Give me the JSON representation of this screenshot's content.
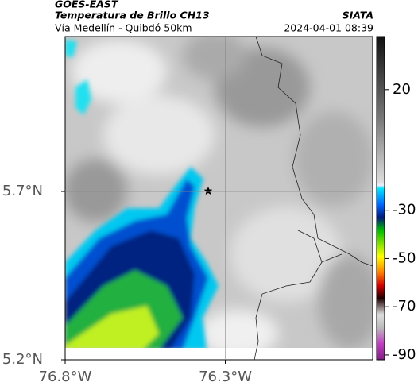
{
  "chart_data": {
    "type": "map",
    "title": "GOES-EAST",
    "subtitle": "Temperatura de Brillo CH13",
    "source": "SIATA",
    "region": "Vía Medellín - Quibdó 50km",
    "timestamp": "2024-04-01 08:39",
    "xlim": [
      -76.8,
      -75.84
    ],
    "ylim": [
      5.2,
      6.16
    ],
    "xticks": [
      {
        "value": -76.8,
        "label": "76.8°W"
      },
      {
        "value": -76.3,
        "label": "76.3°W"
      }
    ],
    "yticks": [
      {
        "value": 5.2,
        "label": "5.2°N"
      },
      {
        "value": 5.7,
        "label": "5.7°N"
      }
    ],
    "grid": true,
    "colorbar_lim": [
      -92,
      42
    ],
    "colorbar_ticks": [
      20,
      -30,
      -50,
      -70,
      -90
    ]
  }
}
